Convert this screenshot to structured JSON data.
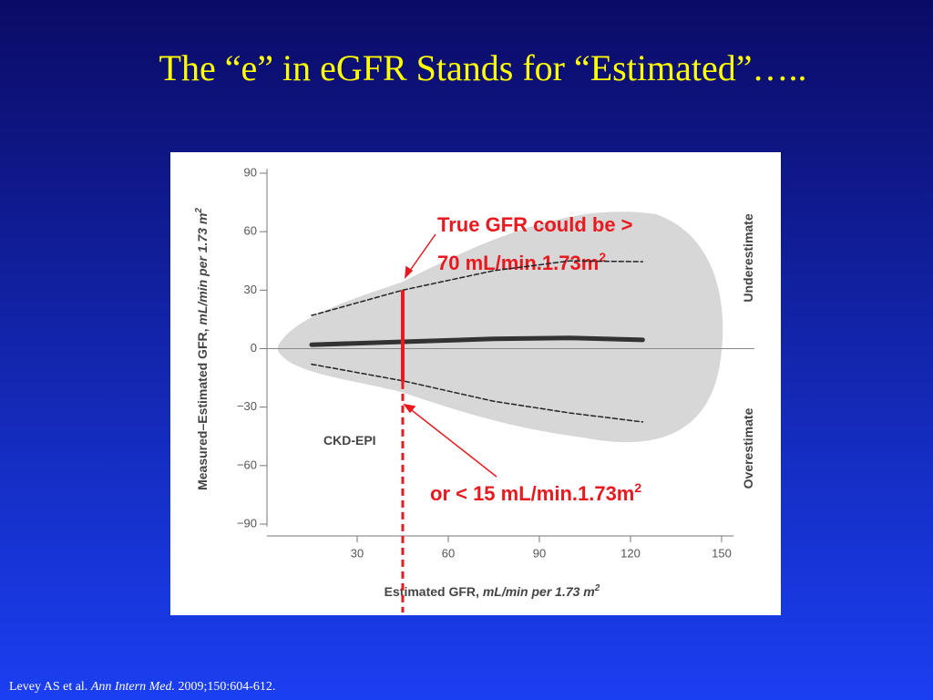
{
  "title": "The “e” in eGFR Stands for “Estimated”…..",
  "citation": {
    "authors": "Levey AS et al.",
    "journal": "Ann Intern Med.",
    "details": "2009;150:604-612."
  },
  "chart_data": {
    "type": "line",
    "label": "CKD-EPI",
    "xlabel": {
      "text": "Estimated GFR, ",
      "unit": "mL/min per 1.73 m",
      "sup": "2"
    },
    "ylabel": {
      "text": "Measured–Estimated GFR, ",
      "unit": "mL/min per 1.73 m",
      "sup": "2"
    },
    "side_labels": [
      "Underestimate",
      "Overestimate"
    ],
    "x": [
      15,
      45,
      75,
      100,
      124
    ],
    "series": [
      {
        "color": "#333333",
        "dashed": false,
        "values": [
          2,
          3.5,
          5,
          5.5,
          4.5
        ]
      },
      {
        "color": "#222222",
        "dashed": true,
        "values": [
          17,
          30,
          40,
          45,
          44.6
        ]
      },
      {
        "color": "#222222",
        "dashed": true,
        "values": [
          -8,
          -16.5,
          -27,
          -33,
          -37.6
        ]
      }
    ],
    "xlim": [
      0,
      154
    ],
    "ylim": [
      -95,
      95
    ],
    "xticks": [
      30,
      60,
      90,
      120,
      150
    ],
    "yticks": [
      {
        "value": -90,
        "label": "−90"
      },
      {
        "value": -60,
        "label": "−60"
      },
      {
        "value": -30,
        "label": "−30"
      },
      0,
      30,
      60,
      90
    ],
    "zero_line": true,
    "marker": {
      "x": 45,
      "high": 30,
      "low": -17,
      "color": "#e8191f"
    },
    "annotations": [
      {
        "text": "True GFR could be >"
      },
      {
        "text": "70 mL/min.1.73m",
        "sup": "2"
      },
      {
        "text": "or < 15 mL/min.1.73m",
        "sup": "2"
      }
    ]
  }
}
